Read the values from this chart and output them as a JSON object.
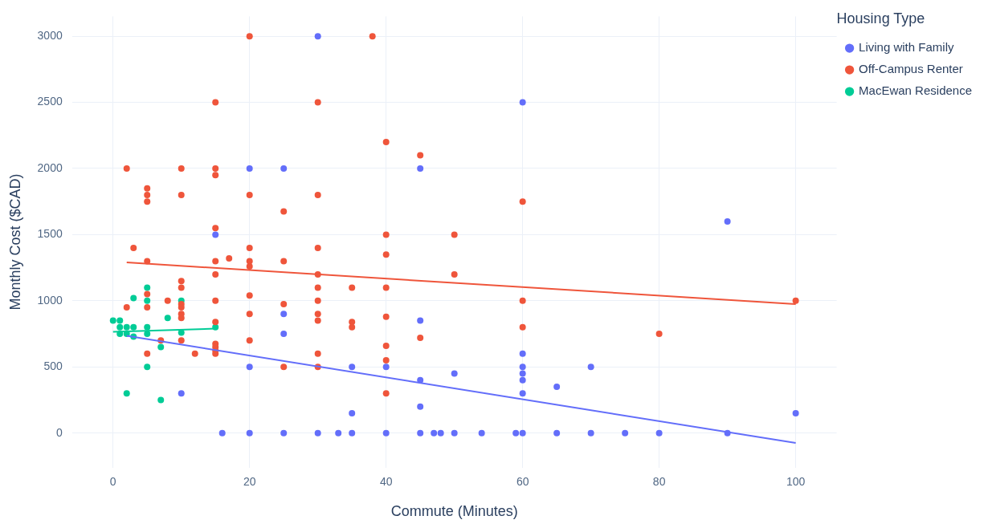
{
  "chart_data": {
    "type": "scatter",
    "xlabel": "Commute (Minutes)",
    "ylabel": "Monthly Cost ($CAD)",
    "legend_title": "Housing Type",
    "legend": "top right",
    "grid": true,
    "xlim": [
      -6,
      106
    ],
    "ylim": [
      -260,
      3150
    ],
    "xticks": [
      0,
      20,
      40,
      60,
      80,
      100
    ],
    "yticks": [
      0,
      500,
      1000,
      1500,
      2000,
      2500,
      3000
    ],
    "series": [
      {
        "name": "Living with Family",
        "color": "#636efa",
        "marker": "circle",
        "x": [
          16,
          20,
          25,
          30,
          33,
          35,
          40,
          45,
          47,
          48,
          50,
          54,
          59,
          60,
          65,
          70,
          75,
          80,
          90,
          15,
          20,
          25,
          30,
          45,
          60,
          90,
          25,
          25,
          20,
          10,
          35,
          35,
          40,
          45,
          45,
          45,
          50,
          60,
          60,
          60,
          60,
          60,
          65,
          70,
          100
        ],
        "values": [
          0,
          0,
          0,
          0,
          0,
          0,
          0,
          0,
          0,
          0,
          0,
          0,
          0,
          0,
          0,
          0,
          0,
          0,
          0,
          1500,
          2000,
          2000,
          3000,
          2000,
          2500,
          1600,
          900,
          750,
          500,
          300,
          500,
          150,
          500,
          850,
          400,
          200,
          450,
          600,
          500,
          450,
          400,
          300,
          350,
          500,
          150
        ]
      },
      {
        "name": "Off-Campus Renter",
        "color": "#ef553b",
        "marker": "circle",
        "x": [
          2,
          3,
          2,
          5,
          5,
          5,
          5,
          5,
          5,
          5,
          8,
          10,
          10,
          10,
          10,
          10,
          10,
          10,
          10,
          10,
          7,
          12,
          15,
          15,
          15,
          15,
          15,
          15,
          15,
          15,
          15,
          15,
          15,
          15,
          17,
          20,
          20,
          20,
          20,
          20,
          20,
          20,
          20,
          25,
          25,
          25,
          25,
          30,
          30,
          30,
          30,
          30,
          30,
          30,
          30,
          30,
          30,
          35,
          35,
          35,
          38,
          40,
          40,
          40,
          40,
          40,
          40,
          40,
          40,
          45,
          45,
          50,
          50,
          60,
          60,
          60,
          80,
          100
        ],
        "values": [
          2000,
          1400,
          950,
          1850,
          1800,
          1750,
          1300,
          1050,
          950,
          600,
          1000,
          2000,
          1800,
          1150,
          1100,
          975,
          950,
          900,
          870,
          700,
          700,
          600,
          2500,
          2000,
          1950,
          1550,
          1300,
          1200,
          1000,
          840,
          675,
          650,
          625,
          600,
          1320,
          3000,
          1800,
          1400,
          1300,
          1260,
          1040,
          900,
          700,
          1675,
          1300,
          975,
          500,
          2500,
          1800,
          1400,
          1200,
          1100,
          1000,
          900,
          850,
          600,
          500,
          1100,
          840,
          800,
          3000,
          2200,
          1500,
          1350,
          1100,
          880,
          660,
          550,
          300,
          2100,
          720,
          1500,
          1200,
          1750,
          1000,
          800,
          750,
          1000
        ]
      },
      {
        "name": "MacEwan Residence",
        "color": "#00cc96",
        "marker": "circle",
        "x": [
          0,
          1,
          1,
          1,
          2,
          2,
          2,
          3,
          3,
          3,
          5,
          5,
          5,
          5,
          5,
          7,
          7,
          8,
          10,
          10,
          15
        ],
        "values": [
          850,
          850,
          800,
          750,
          800,
          750,
          300,
          1020,
          730,
          800,
          1100,
          1000,
          800,
          750,
          500,
          650,
          250,
          870,
          1000,
          760,
          800
        ]
      },
      {
        "type": "line",
        "marker": "none",
        "color": "#636efa",
        "x": [
          2,
          100
        ],
        "values": [
          735,
          -75
        ]
      },
      {
        "type": "line",
        "marker": "none",
        "color": "#ef553b",
        "x": [
          2,
          100
        ],
        "values": [
          1290,
          975
        ]
      },
      {
        "type": "line",
        "marker": "none",
        "color": "#00cc96",
        "x": [
          0,
          15
        ],
        "values": [
          765,
          790
        ]
      }
    ]
  }
}
